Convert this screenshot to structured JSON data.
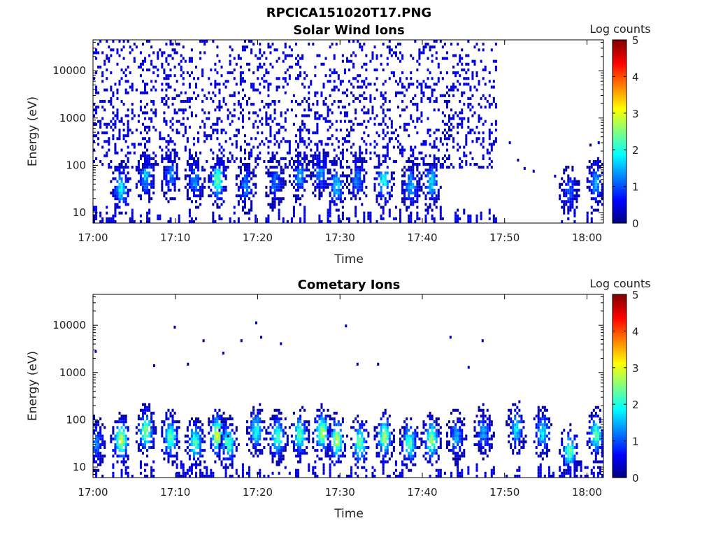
{
  "figure": {
    "title": "RPCICA151020T17.PNG"
  },
  "chart_data": [
    {
      "type": "heatmap",
      "title": "Solar Wind Ions",
      "xlabel": "Time",
      "ylabel": "Energy (eV)",
      "x_ticks": [
        "17:00",
        "17:10",
        "17:20",
        "17:30",
        "17:40",
        "17:50",
        "18:00"
      ],
      "x_range_minutes_after_1700": [
        0,
        62
      ],
      "y_scale": "log",
      "y_ticks": [
        10,
        100,
        1000,
        10000
      ],
      "y_tick_labels": [
        "10",
        "100",
        "1000",
        "10000"
      ],
      "y_range": [
        6,
        45000
      ],
      "colorbar": {
        "label": "Log counts",
        "range": [
          0,
          5
        ],
        "ticks": [
          "0",
          "1",
          "2",
          "3",
          "4",
          "5"
        ],
        "colormap": "jet"
      },
      "sparse_energy_range": [
        80,
        40000
      ],
      "data_end_minute": 49,
      "blobs": [
        {
          "t": 3.3,
          "e": 30,
          "v": 1.9
        },
        {
          "t": 6.3,
          "e": 55,
          "v": 1.6
        },
        {
          "t": 9.3,
          "e": 60,
          "v": 1.2
        },
        {
          "t": 12.3,
          "e": 45,
          "v": 1.4
        },
        {
          "t": 15.0,
          "e": 45,
          "v": 2.4
        },
        {
          "t": 18.5,
          "e": 35,
          "v": 1.3
        },
        {
          "t": 22.0,
          "e": 40,
          "v": 1.2
        },
        {
          "t": 25.0,
          "e": 55,
          "v": 1.4
        },
        {
          "t": 27.5,
          "e": 65,
          "v": 1.3
        },
        {
          "t": 29.5,
          "e": 35,
          "v": 1.7
        },
        {
          "t": 32.0,
          "e": 45,
          "v": 1.2
        },
        {
          "t": 35.2,
          "e": 45,
          "v": 2.0
        },
        {
          "t": 38.5,
          "e": 35,
          "v": 1.5
        },
        {
          "t": 41.0,
          "e": 40,
          "v": 1.7
        },
        {
          "t": 57.8,
          "e": 25,
          "v": 1.0
        },
        {
          "t": 61.0,
          "e": 40,
          "v": 1.5
        }
      ]
    },
    {
      "type": "heatmap",
      "title": "Cometary Ions",
      "xlabel": "Time",
      "ylabel": "Energy (eV)",
      "x_ticks": [
        "17:00",
        "17:10",
        "17:20",
        "17:30",
        "17:40",
        "17:50",
        "18:00"
      ],
      "x_range_minutes_after_1700": [
        0,
        62
      ],
      "y_scale": "log",
      "y_ticks": [
        10,
        100,
        1000,
        10000
      ],
      "y_tick_labels": [
        "10",
        "100",
        "1000",
        "10000"
      ],
      "y_range": [
        6,
        45000
      ],
      "colorbar": {
        "label": "Log counts",
        "range": [
          0,
          5
        ],
        "ticks": [
          "0",
          "1",
          "2",
          "3",
          "4",
          "5"
        ],
        "colormap": "jet"
      },
      "blobs": [
        {
          "t": 0.3,
          "e": 30,
          "v": 1.2
        },
        {
          "t": 3.3,
          "e": 35,
          "v": 2.9
        },
        {
          "t": 6.3,
          "e": 55,
          "v": 2.6
        },
        {
          "t": 9.3,
          "e": 40,
          "v": 2.3
        },
        {
          "t": 12.3,
          "e": 30,
          "v": 2.3
        },
        {
          "t": 15.0,
          "e": 45,
          "v": 3.0
        },
        {
          "t": 16.3,
          "e": 30,
          "v": 2.3
        },
        {
          "t": 19.7,
          "e": 55,
          "v": 2.0
        },
        {
          "t": 22.3,
          "e": 40,
          "v": 2.3
        },
        {
          "t": 25.0,
          "e": 45,
          "v": 2.4
        },
        {
          "t": 27.7,
          "e": 50,
          "v": 2.7
        },
        {
          "t": 29.5,
          "e": 35,
          "v": 2.8
        },
        {
          "t": 32.3,
          "e": 30,
          "v": 2.4
        },
        {
          "t": 35.3,
          "e": 40,
          "v": 2.6
        },
        {
          "t": 38.3,
          "e": 30,
          "v": 2.2
        },
        {
          "t": 41.0,
          "e": 35,
          "v": 2.6
        },
        {
          "t": 44.0,
          "e": 40,
          "v": 1.5
        },
        {
          "t": 47.3,
          "e": 50,
          "v": 1.4
        },
        {
          "t": 51.3,
          "e": 60,
          "v": 1.7
        },
        {
          "t": 54.5,
          "e": 50,
          "v": 1.8
        },
        {
          "t": 57.8,
          "e": 20,
          "v": 2.4
        },
        {
          "t": 61.0,
          "e": 45,
          "v": 2.3
        }
      ],
      "scatter_points": [
        {
          "t": 0.2,
          "e": 2600
        },
        {
          "t": 7.3,
          "e": 1300
        },
        {
          "t": 9.8,
          "e": 8500
        },
        {
          "t": 11.4,
          "e": 1400
        },
        {
          "t": 13.3,
          "e": 4400
        },
        {
          "t": 15.7,
          "e": 2400
        },
        {
          "t": 17.9,
          "e": 4400
        },
        {
          "t": 19.7,
          "e": 10500
        },
        {
          "t": 20.3,
          "e": 5200
        },
        {
          "t": 22.7,
          "e": 3800
        },
        {
          "t": 30.6,
          "e": 9000
        },
        {
          "t": 32.0,
          "e": 1400
        },
        {
          "t": 34.5,
          "e": 1400
        },
        {
          "t": 43.3,
          "e": 5200
        },
        {
          "t": 45.5,
          "e": 1200
        },
        {
          "t": 47.2,
          "e": 4400
        }
      ]
    }
  ]
}
